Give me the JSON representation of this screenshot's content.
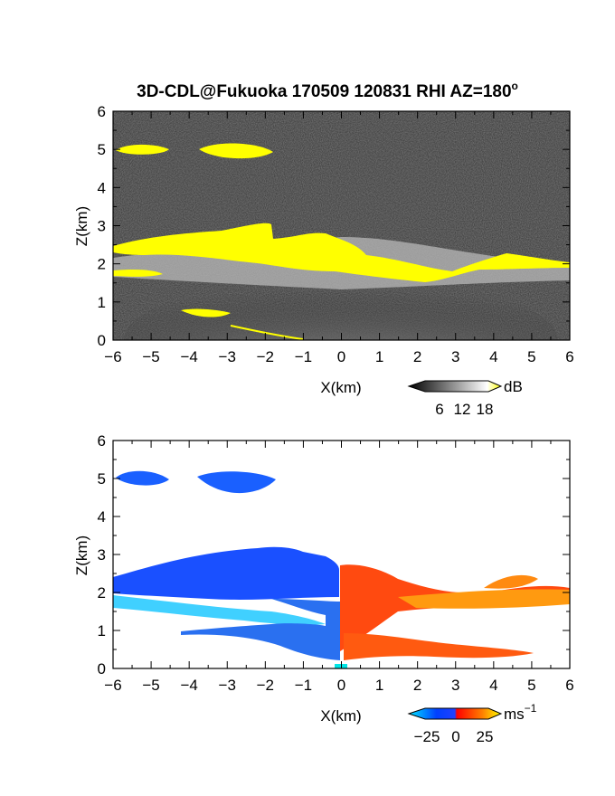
{
  "figure": {
    "title_main": "3D-CDL@Fukuoka 170509 120831 RHI AZ=180",
    "title_sup": "o"
  },
  "chart_data": [
    {
      "type": "heatmap",
      "panel": "signal-intensity",
      "xlabel": "X(km)",
      "ylabel": "Z(km)",
      "xlim": [
        -6,
        6
      ],
      "ylim": [
        0,
        6
      ],
      "x_ticks": [
        -6,
        -5,
        -4,
        -3,
        -2,
        -1,
        0,
        1,
        2,
        3,
        4,
        5,
        6
      ],
      "y_ticks": [
        0,
        1,
        2,
        3,
        4,
        5,
        6
      ],
      "colorbar": {
        "unit": "dB",
        "ticks": [
          6,
          12,
          18
        ],
        "colors": [
          "#000000",
          "#ffffff",
          "#ffff00"
        ]
      },
      "features": [
        {
          "name": "upper-layer-west",
          "x": [
            -5.9,
            -4.7
          ],
          "z": 5.0,
          "value_db": 18
        },
        {
          "name": "upper-layer-mid",
          "x": [
            -3.7,
            -1.7
          ],
          "z": 4.95,
          "value_db": 18
        },
        {
          "name": "main-layer",
          "x": [
            -6.0,
            6.0
          ],
          "z_top": 2.6,
          "z_bottom": 1.5,
          "value_db": 14
        },
        {
          "name": "low-layer",
          "x": [
            -4.2,
            -2.5
          ],
          "z": 0.7,
          "value_db": 14
        },
        {
          "name": "near-ground-return",
          "x": [
            -1.5,
            1.0
          ],
          "z": 0.2,
          "value_db": 10
        }
      ]
    },
    {
      "type": "heatmap",
      "panel": "doppler-velocity",
      "xlabel": "X(km)",
      "ylabel": "Z(km)",
      "xlim": [
        -6,
        6
      ],
      "ylim": [
        0,
        6
      ],
      "x_ticks": [
        -6,
        -5,
        -4,
        -3,
        -2,
        -1,
        0,
        1,
        2,
        3,
        4,
        5,
        6
      ],
      "y_ticks": [
        0,
        1,
        2,
        3,
        4,
        5,
        6
      ],
      "colorbar": {
        "unit": "ms",
        "unit_sup": "−1",
        "ticks": [
          "−25",
          "0",
          "25"
        ],
        "colors": [
          "#00e5ff",
          "#0040ff",
          "#ff0000",
          "#ffff00"
        ]
      },
      "features": [
        {
          "name": "upper-layer-west",
          "x": [
            -5.9,
            -4.7
          ],
          "z": 5.0,
          "velocity_ms": -22
        },
        {
          "name": "upper-layer-mid",
          "x": [
            -3.7,
            -1.7
          ],
          "z": 4.95,
          "velocity_ms": -22
        },
        {
          "name": "west-layer-top",
          "x": [
            -6.0,
            -0.2
          ],
          "z": 2.3,
          "velocity_ms": -20
        },
        {
          "name": "west-layer-low",
          "x": [
            -6.0,
            -1.0
          ],
          "z": 1.6,
          "velocity_ms": -28
        },
        {
          "name": "east-layer",
          "x": [
            0.0,
            3.0
          ],
          "z": 1.7,
          "velocity_ms": 15
        },
        {
          "name": "east-layer-far",
          "x": [
            3.0,
            6.0
          ],
          "z": 2.0,
          "velocity_ms": 22
        },
        {
          "name": "east-lower",
          "x": [
            1.0,
            5.0
          ],
          "z": 0.5,
          "velocity_ms": 10
        },
        {
          "name": "west-lower",
          "x": [
            -4.2,
            -0.2
          ],
          "z": 0.6,
          "velocity_ms": -15
        }
      ]
    }
  ]
}
